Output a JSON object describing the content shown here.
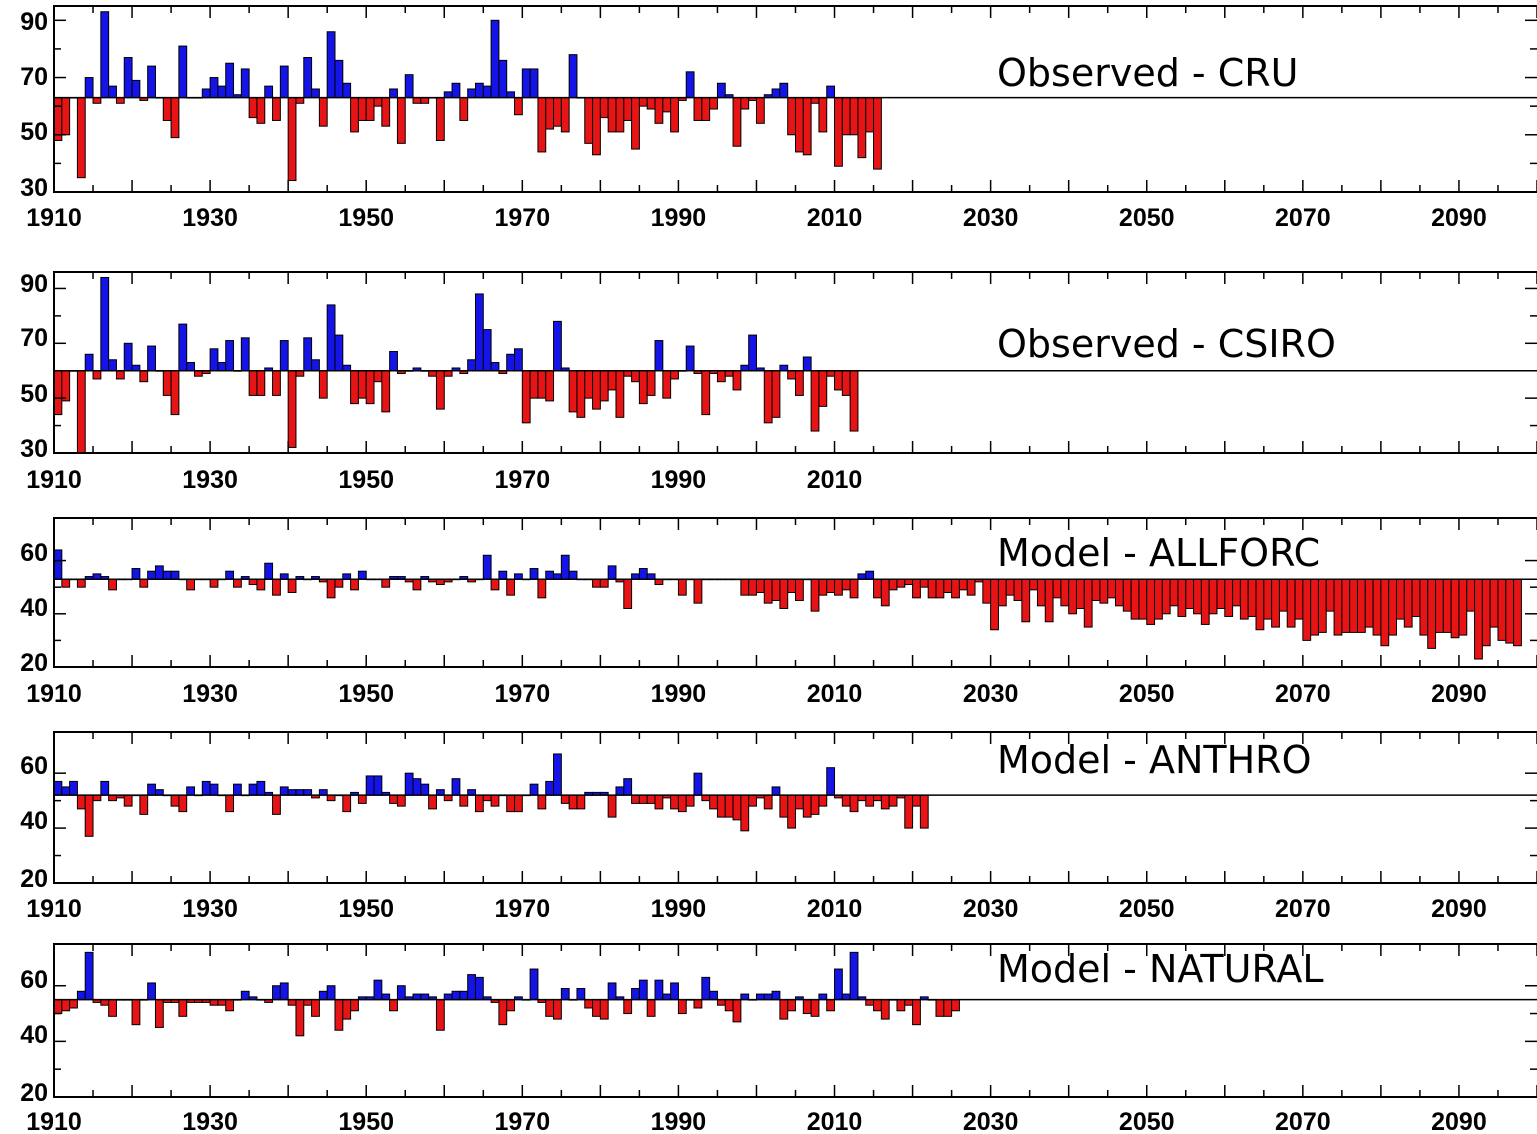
{
  "colors": {
    "above": "#1414e6",
    "below": "#e61414",
    "axis": "#000000",
    "background": "#ffffff"
  },
  "chart_data": [
    {
      "type": "bar",
      "title": "Observed - CRU",
      "xlim": [
        1910,
        2100
      ],
      "ylim": [
        30,
        95
      ],
      "baseline": 63,
      "x_ticks": [
        1910,
        1930,
        1950,
        1970,
        1990,
        2010,
        2030,
        2050,
        2070,
        2090
      ],
      "y_ticks": [
        30,
        50,
        70,
        90
      ],
      "start_year": 1910,
      "values": [
        48,
        50,
        63,
        35,
        70,
        61,
        93,
        67,
        61,
        77,
        69,
        62,
        74,
        63,
        55,
        49,
        81,
        63,
        63,
        66,
        70,
        67,
        75,
        64,
        73,
        56,
        54,
        67,
        55,
        74,
        34,
        61,
        77,
        66,
        53,
        86,
        76,
        68,
        51,
        55,
        55,
        60,
        53,
        66,
        47,
        71,
        61,
        61,
        63,
        48,
        65,
        68,
        55,
        66,
        68,
        67,
        90,
        76,
        65,
        57,
        73,
        73,
        44,
        52,
        53,
        51,
        78,
        63,
        47,
        43,
        56,
        51,
        51,
        55,
        45,
        60,
        59,
        54,
        58,
        51,
        62,
        72,
        55,
        55,
        59,
        68,
        64,
        46,
        59,
        62,
        54,
        64,
        66,
        68,
        50,
        44,
        43,
        61,
        51,
        67,
        39,
        50,
        50,
        42,
        51,
        38
      ]
    },
    {
      "type": "bar",
      "title": "Observed - CSIRO",
      "xlim": [
        1910,
        2100
      ],
      "ylim": [
        30,
        96
      ],
      "baseline": 60,
      "x_ticks": [
        1910,
        1930,
        1950,
        1970,
        1990,
        2010
      ],
      "y_ticks": [
        30,
        50,
        70,
        90
      ],
      "start_year": 1910,
      "values": [
        44,
        49,
        60,
        30,
        66,
        57,
        94,
        64,
        57,
        70,
        62,
        56,
        69,
        60,
        51,
        44,
        77,
        63,
        58,
        59,
        68,
        63,
        71,
        60,
        72,
        51,
        51,
        61,
        51,
        71,
        32,
        58,
        72,
        64,
        50,
        84,
        73,
        62,
        48,
        50,
        48,
        56,
        45,
        67,
        59,
        60,
        61,
        60,
        58,
        46,
        58,
        61,
        59,
        64,
        88,
        75,
        63,
        59,
        66,
        68,
        41,
        50,
        50,
        49,
        78,
        61,
        45,
        43,
        50,
        46,
        49,
        53,
        43,
        58,
        56,
        48,
        51,
        71,
        50,
        57,
        60,
        69,
        59,
        44,
        59,
        56,
        58,
        53,
        62,
        73,
        61,
        41,
        43,
        62,
        57,
        51,
        65,
        38,
        47,
        58,
        53,
        51,
        38
      ]
    },
    {
      "type": "bar",
      "title": "Model - ALLFORC",
      "xlim": [
        1910,
        2100
      ],
      "ylim": [
        20,
        76
      ],
      "baseline": 53,
      "x_ticks": [
        1910,
        1930,
        1950,
        1970,
        1990,
        2010,
        2030,
        2050,
        2070,
        2090
      ],
      "y_ticks": [
        20,
        40,
        60
      ],
      "start_year": 1910,
      "values": [
        64,
        50,
        53,
        50,
        54,
        55,
        54,
        49,
        53,
        53,
        57,
        50,
        56,
        58,
        56,
        56,
        53,
        49,
        53,
        53,
        50,
        53,
        56,
        50,
        54,
        51,
        49,
        59,
        47,
        55,
        48,
        54,
        53,
        54,
        52,
        46,
        50,
        55,
        49,
        56,
        53,
        53,
        50,
        54,
        54,
        52,
        49,
        54,
        52,
        51,
        52,
        53,
        54,
        52,
        53,
        62,
        49,
        56,
        47,
        55,
        53,
        57,
        46,
        56,
        55,
        62,
        56,
        53,
        53,
        50,
        50,
        58,
        52,
        42,
        55,
        57,
        55,
        51,
        53,
        53,
        47,
        53,
        44,
        53,
        53,
        53,
        53,
        53,
        47,
        47,
        48,
        44,
        45,
        42,
        48,
        45,
        53,
        41,
        47,
        48,
        47,
        49,
        46,
        55,
        56,
        46,
        43,
        49,
        50,
        51,
        46,
        50,
        46,
        46,
        48,
        46,
        49,
        47,
        52,
        44,
        34,
        43,
        47,
        45,
        37,
        49,
        43,
        37,
        46,
        43,
        40,
        42,
        35,
        45,
        44,
        46,
        43,
        41,
        38,
        38,
        36,
        38,
        40,
        43,
        39,
        42,
        40,
        36,
        40,
        42,
        39,
        43,
        38,
        39,
        34,
        38,
        35,
        41,
        35,
        38,
        30,
        32,
        33,
        41,
        32,
        33,
        33,
        33,
        35,
        32,
        28,
        32,
        38,
        35,
        39,
        32,
        27,
        33,
        33,
        31,
        32,
        41,
        23,
        28,
        35,
        30,
        29,
        28
      ]
    },
    {
      "type": "bar",
      "title": "Model - ANTHRO",
      "xlim": [
        1910,
        2100
      ],
      "ylim": [
        20,
        75
      ],
      "baseline": 52,
      "x_ticks": [
        1910,
        1930,
        1950,
        1970,
        1990,
        2010,
        2030,
        2050,
        2070,
        2090
      ],
      "y_ticks": [
        20,
        40,
        60
      ],
      "start_year": 1910,
      "values": [
        57,
        55,
        57,
        47,
        37,
        50,
        57,
        50,
        51,
        48,
        52,
        45,
        56,
        54,
        52,
        48,
        46,
        55,
        52,
        57,
        56,
        52,
        46,
        56,
        52,
        56,
        57,
        53,
        45,
        55,
        54,
        54,
        54,
        51,
        54,
        50,
        52,
        46,
        53,
        49,
        59,
        59,
        53,
        49,
        48,
        60,
        58,
        56,
        47,
        54,
        50,
        58,
        48,
        54,
        46,
        50,
        48,
        52,
        46,
        46,
        52,
        56,
        47,
        57,
        67,
        49,
        47,
        47,
        53,
        53,
        53,
        44,
        55,
        58,
        49,
        49,
        49,
        47,
        51,
        47,
        46,
        48,
        60,
        50,
        47,
        44,
        44,
        43,
        39,
        48,
        51,
        47,
        55,
        44,
        40,
        47,
        44,
        45,
        48,
        62,
        51,
        48,
        46,
        50,
        48,
        50,
        47,
        48,
        51,
        40,
        48,
        40
      ]
    },
    {
      "type": "bar",
      "title": "Model - NATURAL",
      "xlim": [
        1910,
        2100
      ],
      "ylim": [
        20,
        75
      ],
      "baseline": 55,
      "x_ticks": [
        1910,
        1930,
        1950,
        1970,
        1990,
        2010,
        2030,
        2050,
        2070,
        2090
      ],
      "y_ticks": [
        20,
        40,
        60
      ],
      "start_year": 1910,
      "values": [
        50,
        51,
        52,
        58,
        72,
        54,
        53,
        49,
        55,
        55,
        46,
        55,
        61,
        45,
        54,
        54,
        49,
        54,
        54,
        54,
        53,
        53,
        51,
        55,
        58,
        56,
        55,
        54,
        60,
        61,
        53,
        42,
        53,
        49,
        58,
        60,
        44,
        48,
        51,
        56,
        56,
        62,
        57,
        51,
        60,
        56,
        57,
        57,
        56,
        44,
        57,
        58,
        58,
        64,
        63,
        56,
        54,
        46,
        51,
        56,
        55,
        66,
        54,
        49,
        48,
        59,
        55,
        59,
        52,
        49,
        48,
        61,
        56,
        50,
        59,
        62,
        49,
        62,
        57,
        61,
        50,
        55,
        52,
        63,
        58,
        53,
        51,
        47,
        57,
        55,
        57,
        57,
        58,
        48,
        51,
        56,
        50,
        49,
        57,
        51,
        66,
        57,
        72,
        56,
        53,
        51,
        48,
        55,
        51,
        53,
        46,
        56,
        55,
        49,
        49,
        51
      ]
    }
  ]
}
